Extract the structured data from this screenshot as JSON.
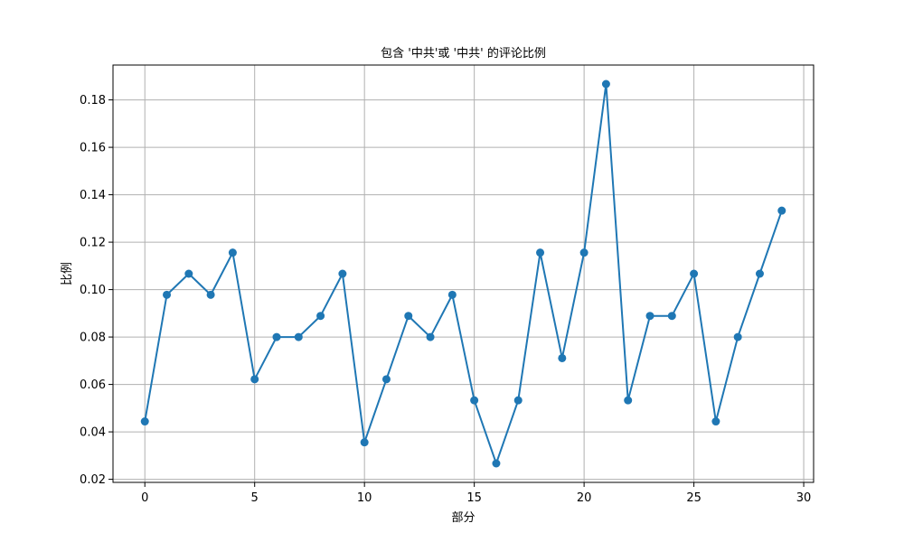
{
  "chart_data": {
    "type": "line",
    "title": "包含 '中共'或 '中共' 的评论比例",
    "xlabel": "部分",
    "ylabel": "比例",
    "x": [
      0,
      1,
      2,
      3,
      4,
      5,
      6,
      7,
      8,
      9,
      10,
      11,
      12,
      13,
      14,
      15,
      16,
      17,
      18,
      19,
      20,
      21,
      22,
      23,
      24,
      25,
      26,
      27,
      28,
      29
    ],
    "series": [
      {
        "values": [
          0.0444,
          0.0978,
          0.1067,
          0.0978,
          0.1156,
          0.0622,
          0.08,
          0.08,
          0.0889,
          0.1067,
          0.0356,
          0.0622,
          0.0889,
          0.08,
          0.0978,
          0.0533,
          0.0267,
          0.0533,
          0.1156,
          0.0711,
          0.1156,
          0.1867,
          0.0533,
          0.0889,
          0.0889,
          0.1067,
          0.0444,
          0.08,
          0.1067,
          0.1333
        ],
        "color": "#1f77b4",
        "marker": "circle"
      }
    ],
    "xlim": [
      -1.45,
      30.45
    ],
    "ylim": [
      0.0187,
      0.1947
    ],
    "xticks": [
      0,
      5,
      10,
      15,
      20,
      25,
      30
    ],
    "xtick_labels": [
      "0",
      "5",
      "10",
      "15",
      "20",
      "25",
      "30"
    ],
    "yticks": [
      0.02,
      0.04,
      0.06,
      0.08,
      0.1,
      0.12,
      0.14,
      0.16,
      0.18
    ],
    "ytick_labels": [
      "0.02",
      "0.04",
      "0.06",
      "0.08",
      "0.10",
      "0.12",
      "0.14",
      "0.16",
      "0.18"
    ],
    "grid": true,
    "legend": null
  }
}
